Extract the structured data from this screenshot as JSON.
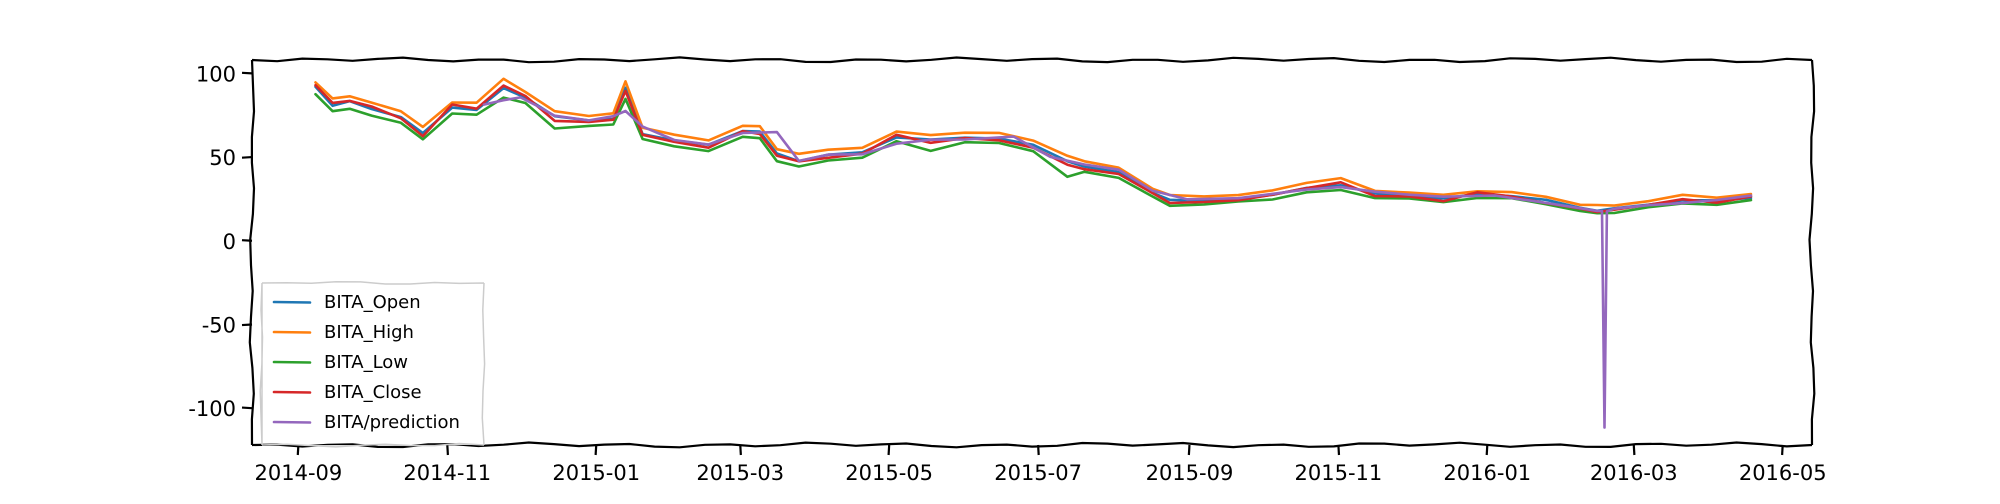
{
  "chart_data": {
    "type": "line",
    "title": "",
    "xlabel": "",
    "ylabel": "",
    "xlim": [
      "2014-08-13",
      "2016-05-13"
    ],
    "ylim": [
      -122,
      108
    ],
    "xticks": [
      "2014-09",
      "2014-11",
      "2015-01",
      "2015-03",
      "2015-05",
      "2015-07",
      "2015-09",
      "2015-11",
      "2016-01",
      "2016-03",
      "2016-05"
    ],
    "yticks": [
      100,
      50,
      0,
      -50,
      -100
    ],
    "ytick_labels": [
      "100",
      "50",
      "0",
      "-50",
      "-100"
    ],
    "grid": false,
    "legend_position": "bottom-left",
    "series": [
      {
        "name": "BITA_Open",
        "color": "#1f77b4",
        "points": [
          [
            "2014-09-08",
            92
          ],
          [
            "2014-09-15",
            81
          ],
          [
            "2014-09-22",
            83
          ],
          [
            "2014-10-01",
            79
          ],
          [
            "2014-10-13",
            74
          ],
          [
            "2014-10-22",
            64
          ],
          [
            "2014-11-03",
            80
          ],
          [
            "2014-11-13",
            78
          ],
          [
            "2014-11-24",
            91
          ],
          [
            "2014-12-03",
            86
          ],
          [
            "2014-12-15",
            74
          ],
          [
            "2014-12-29",
            72
          ],
          [
            "2015-01-08",
            73
          ],
          [
            "2015-01-13",
            91
          ],
          [
            "2015-01-20",
            64
          ],
          [
            "2015-02-02",
            60
          ],
          [
            "2015-02-16",
            57
          ],
          [
            "2015-03-02",
            66
          ],
          [
            "2015-03-09",
            65
          ],
          [
            "2015-03-16",
            52
          ],
          [
            "2015-03-25",
            48
          ],
          [
            "2015-04-06",
            51
          ],
          [
            "2015-04-20",
            53
          ],
          [
            "2015-05-04",
            62
          ],
          [
            "2015-05-18",
            60
          ],
          [
            "2015-06-01",
            62
          ],
          [
            "2015-06-15",
            61
          ],
          [
            "2015-06-29",
            57
          ],
          [
            "2015-07-13",
            48
          ],
          [
            "2015-07-20",
            44
          ],
          [
            "2015-08-03",
            41
          ],
          [
            "2015-08-17",
            29
          ],
          [
            "2015-08-24",
            24
          ],
          [
            "2015-09-07",
            24
          ],
          [
            "2015-09-21",
            25
          ],
          [
            "2015-10-05",
            27
          ],
          [
            "2015-10-19",
            32
          ],
          [
            "2015-11-02",
            33
          ],
          [
            "2015-11-16",
            28
          ],
          [
            "2015-11-30",
            27
          ],
          [
            "2015-12-14",
            25
          ],
          [
            "2015-12-28",
            28
          ],
          [
            "2016-01-11",
            27
          ],
          [
            "2016-01-25",
            24
          ],
          [
            "2016-02-08",
            20
          ],
          [
            "2016-02-15",
            18
          ],
          [
            "2016-02-22",
            19
          ],
          [
            "2016-03-07",
            22
          ],
          [
            "2016-03-21",
            24
          ],
          [
            "2016-04-04",
            24
          ],
          [
            "2016-04-18",
            26
          ]
        ]
      },
      {
        "name": "BITA_High",
        "color": "#ff7f0e",
        "points": [
          [
            "2014-09-08",
            95
          ],
          [
            "2014-09-15",
            85
          ],
          [
            "2014-09-22",
            86
          ],
          [
            "2014-10-01",
            83
          ],
          [
            "2014-10-13",
            77
          ],
          [
            "2014-10-22",
            68
          ],
          [
            "2014-11-03",
            83
          ],
          [
            "2014-11-13",
            82
          ],
          [
            "2014-11-24",
            97
          ],
          [
            "2014-12-03",
            89
          ],
          [
            "2014-12-15",
            77
          ],
          [
            "2014-12-29",
            75
          ],
          [
            "2015-01-08",
            76
          ],
          [
            "2015-01-13",
            95
          ],
          [
            "2015-01-20",
            68
          ],
          [
            "2015-02-02",
            63
          ],
          [
            "2015-02-16",
            60
          ],
          [
            "2015-03-02",
            69
          ],
          [
            "2015-03-09",
            68
          ],
          [
            "2015-03-16",
            55
          ],
          [
            "2015-03-25",
            52
          ],
          [
            "2015-04-06",
            54
          ],
          [
            "2015-04-20",
            56
          ],
          [
            "2015-05-04",
            65
          ],
          [
            "2015-05-18",
            63
          ],
          [
            "2015-06-01",
            65
          ],
          [
            "2015-06-15",
            64
          ],
          [
            "2015-06-29",
            60
          ],
          [
            "2015-07-13",
            51
          ],
          [
            "2015-07-20",
            47
          ],
          [
            "2015-08-03",
            44
          ],
          [
            "2015-08-17",
            31
          ],
          [
            "2015-08-24",
            27
          ],
          [
            "2015-09-07",
            27
          ],
          [
            "2015-09-21",
            27
          ],
          [
            "2015-10-05",
            30
          ],
          [
            "2015-10-19",
            35
          ],
          [
            "2015-11-02",
            37
          ],
          [
            "2015-11-16",
            30
          ],
          [
            "2015-11-30",
            29
          ],
          [
            "2015-12-14",
            27
          ],
          [
            "2015-12-28",
            30
          ],
          [
            "2016-01-11",
            29
          ],
          [
            "2016-01-25",
            26
          ],
          [
            "2016-02-08",
            22
          ],
          [
            "2016-02-15",
            21
          ],
          [
            "2016-02-22",
            21
          ],
          [
            "2016-03-07",
            24
          ],
          [
            "2016-03-21",
            27
          ],
          [
            "2016-04-04",
            26
          ],
          [
            "2016-04-18",
            28
          ]
        ]
      },
      {
        "name": "BITA_Low",
        "color": "#2ca02c",
        "points": [
          [
            "2014-09-08",
            88
          ],
          [
            "2014-09-15",
            77
          ],
          [
            "2014-09-22",
            79
          ],
          [
            "2014-10-01",
            75
          ],
          [
            "2014-10-13",
            70
          ],
          [
            "2014-10-22",
            61
          ],
          [
            "2014-11-03",
            76
          ],
          [
            "2014-11-13",
            75
          ],
          [
            "2014-11-24",
            86
          ],
          [
            "2014-12-03",
            82
          ],
          [
            "2014-12-15",
            67
          ],
          [
            "2014-12-29",
            69
          ],
          [
            "2015-01-08",
            69
          ],
          [
            "2015-01-13",
            85
          ],
          [
            "2015-01-20",
            61
          ],
          [
            "2015-02-02",
            56
          ],
          [
            "2015-02-16",
            54
          ],
          [
            "2015-03-02",
            62
          ],
          [
            "2015-03-09",
            61
          ],
          [
            "2015-03-16",
            48
          ],
          [
            "2015-03-25",
            44
          ],
          [
            "2015-04-06",
            48
          ],
          [
            "2015-04-20",
            50
          ],
          [
            "2015-05-04",
            59
          ],
          [
            "2015-05-18",
            54
          ],
          [
            "2015-06-01",
            59
          ],
          [
            "2015-06-15",
            58
          ],
          [
            "2015-06-29",
            54
          ],
          [
            "2015-07-13",
            38
          ],
          [
            "2015-07-20",
            41
          ],
          [
            "2015-08-03",
            38
          ],
          [
            "2015-08-17",
            26
          ],
          [
            "2015-08-24",
            21
          ],
          [
            "2015-09-07",
            22
          ],
          [
            "2015-09-21",
            23
          ],
          [
            "2015-10-05",
            25
          ],
          [
            "2015-10-19",
            29
          ],
          [
            "2015-11-02",
            30
          ],
          [
            "2015-11-16",
            26
          ],
          [
            "2015-11-30",
            25
          ],
          [
            "2015-12-14",
            23
          ],
          [
            "2015-12-28",
            26
          ],
          [
            "2016-01-11",
            25
          ],
          [
            "2016-01-25",
            22
          ],
          [
            "2016-02-08",
            18
          ],
          [
            "2016-02-15",
            16
          ],
          [
            "2016-02-22",
            17
          ],
          [
            "2016-03-07",
            20
          ],
          [
            "2016-03-21",
            22
          ],
          [
            "2016-04-04",
            22
          ],
          [
            "2016-04-18",
            24
          ]
        ]
      },
      {
        "name": "BITA_Close",
        "color": "#d62728",
        "points": [
          [
            "2014-09-08",
            93
          ],
          [
            "2014-09-15",
            82
          ],
          [
            "2014-09-22",
            84
          ],
          [
            "2014-10-01",
            80
          ],
          [
            "2014-10-13",
            73
          ],
          [
            "2014-10-22",
            63
          ],
          [
            "2014-11-03",
            81
          ],
          [
            "2014-11-13",
            79
          ],
          [
            "2014-11-24",
            93
          ],
          [
            "2014-12-03",
            86
          ],
          [
            "2014-12-15",
            72
          ],
          [
            "2014-12-29",
            71
          ],
          [
            "2015-01-08",
            72
          ],
          [
            "2015-01-13",
            90
          ],
          [
            "2015-01-20",
            63
          ],
          [
            "2015-02-02",
            59
          ],
          [
            "2015-02-16",
            56
          ],
          [
            "2015-03-02",
            65
          ],
          [
            "2015-03-09",
            64
          ],
          [
            "2015-03-16",
            51
          ],
          [
            "2015-03-25",
            47
          ],
          [
            "2015-04-06",
            50
          ],
          [
            "2015-04-20",
            52
          ],
          [
            "2015-05-04",
            63
          ],
          [
            "2015-05-18",
            59
          ],
          [
            "2015-06-01",
            61
          ],
          [
            "2015-06-15",
            60
          ],
          [
            "2015-06-29",
            56
          ],
          [
            "2015-07-13",
            45
          ],
          [
            "2015-07-20",
            43
          ],
          [
            "2015-08-03",
            40
          ],
          [
            "2015-08-17",
            28
          ],
          [
            "2015-08-24",
            23
          ],
          [
            "2015-09-07",
            23
          ],
          [
            "2015-09-21",
            24
          ],
          [
            "2015-10-05",
            28
          ],
          [
            "2015-10-19",
            31
          ],
          [
            "2015-11-02",
            35
          ],
          [
            "2015-11-16",
            27
          ],
          [
            "2015-11-30",
            26
          ],
          [
            "2015-12-14",
            24
          ],
          [
            "2015-12-28",
            29
          ],
          [
            "2016-01-11",
            26
          ],
          [
            "2016-01-25",
            23
          ],
          [
            "2016-02-08",
            19
          ],
          [
            "2016-02-15",
            17
          ],
          [
            "2016-02-22",
            19
          ],
          [
            "2016-03-07",
            21
          ],
          [
            "2016-03-21",
            25
          ],
          [
            "2016-04-04",
            23
          ],
          [
            "2016-04-18",
            26
          ]
        ]
      },
      {
        "name": "BITA/prediction",
        "color": "#9467bd",
        "points": [
          [
            "2014-11-16",
            81
          ],
          [
            "2014-11-24",
            84
          ],
          [
            "2014-12-01",
            86
          ],
          [
            "2014-12-08",
            80
          ],
          [
            "2014-12-15",
            75
          ],
          [
            "2014-12-29",
            72
          ],
          [
            "2015-01-08",
            74
          ],
          [
            "2015-01-13",
            78
          ],
          [
            "2015-01-20",
            68
          ],
          [
            "2015-02-02",
            60
          ],
          [
            "2015-02-16",
            58
          ],
          [
            "2015-03-02",
            64
          ],
          [
            "2015-03-16",
            65
          ],
          [
            "2015-03-25",
            48
          ],
          [
            "2015-04-06",
            51
          ],
          [
            "2015-04-20",
            52
          ],
          [
            "2015-05-04",
            58
          ],
          [
            "2015-05-18",
            60
          ],
          [
            "2015-06-01",
            61
          ],
          [
            "2015-06-21",
            62
          ],
          [
            "2015-07-06",
            50
          ],
          [
            "2015-07-20",
            46
          ],
          [
            "2015-08-03",
            42
          ],
          [
            "2015-08-17",
            30
          ],
          [
            "2015-08-31",
            25
          ],
          [
            "2015-09-21",
            25
          ],
          [
            "2015-10-19",
            31
          ],
          [
            "2015-11-02",
            32
          ],
          [
            "2015-11-16",
            29
          ],
          [
            "2015-11-30",
            28
          ],
          [
            "2015-12-14",
            26
          ],
          [
            "2016-01-04",
            27
          ],
          [
            "2016-01-25",
            23
          ],
          [
            "2016-02-08",
            19
          ],
          [
            "2016-02-15",
            18
          ],
          [
            "2016-02-17",
            18
          ],
          [
            "2016-02-18",
            -112
          ],
          [
            "2016-02-19",
            18
          ],
          [
            "2016-02-22",
            19
          ],
          [
            "2016-03-07",
            21
          ],
          [
            "2016-03-21",
            23
          ],
          [
            "2016-04-04",
            24
          ],
          [
            "2016-04-18",
            27
          ]
        ]
      }
    ]
  }
}
